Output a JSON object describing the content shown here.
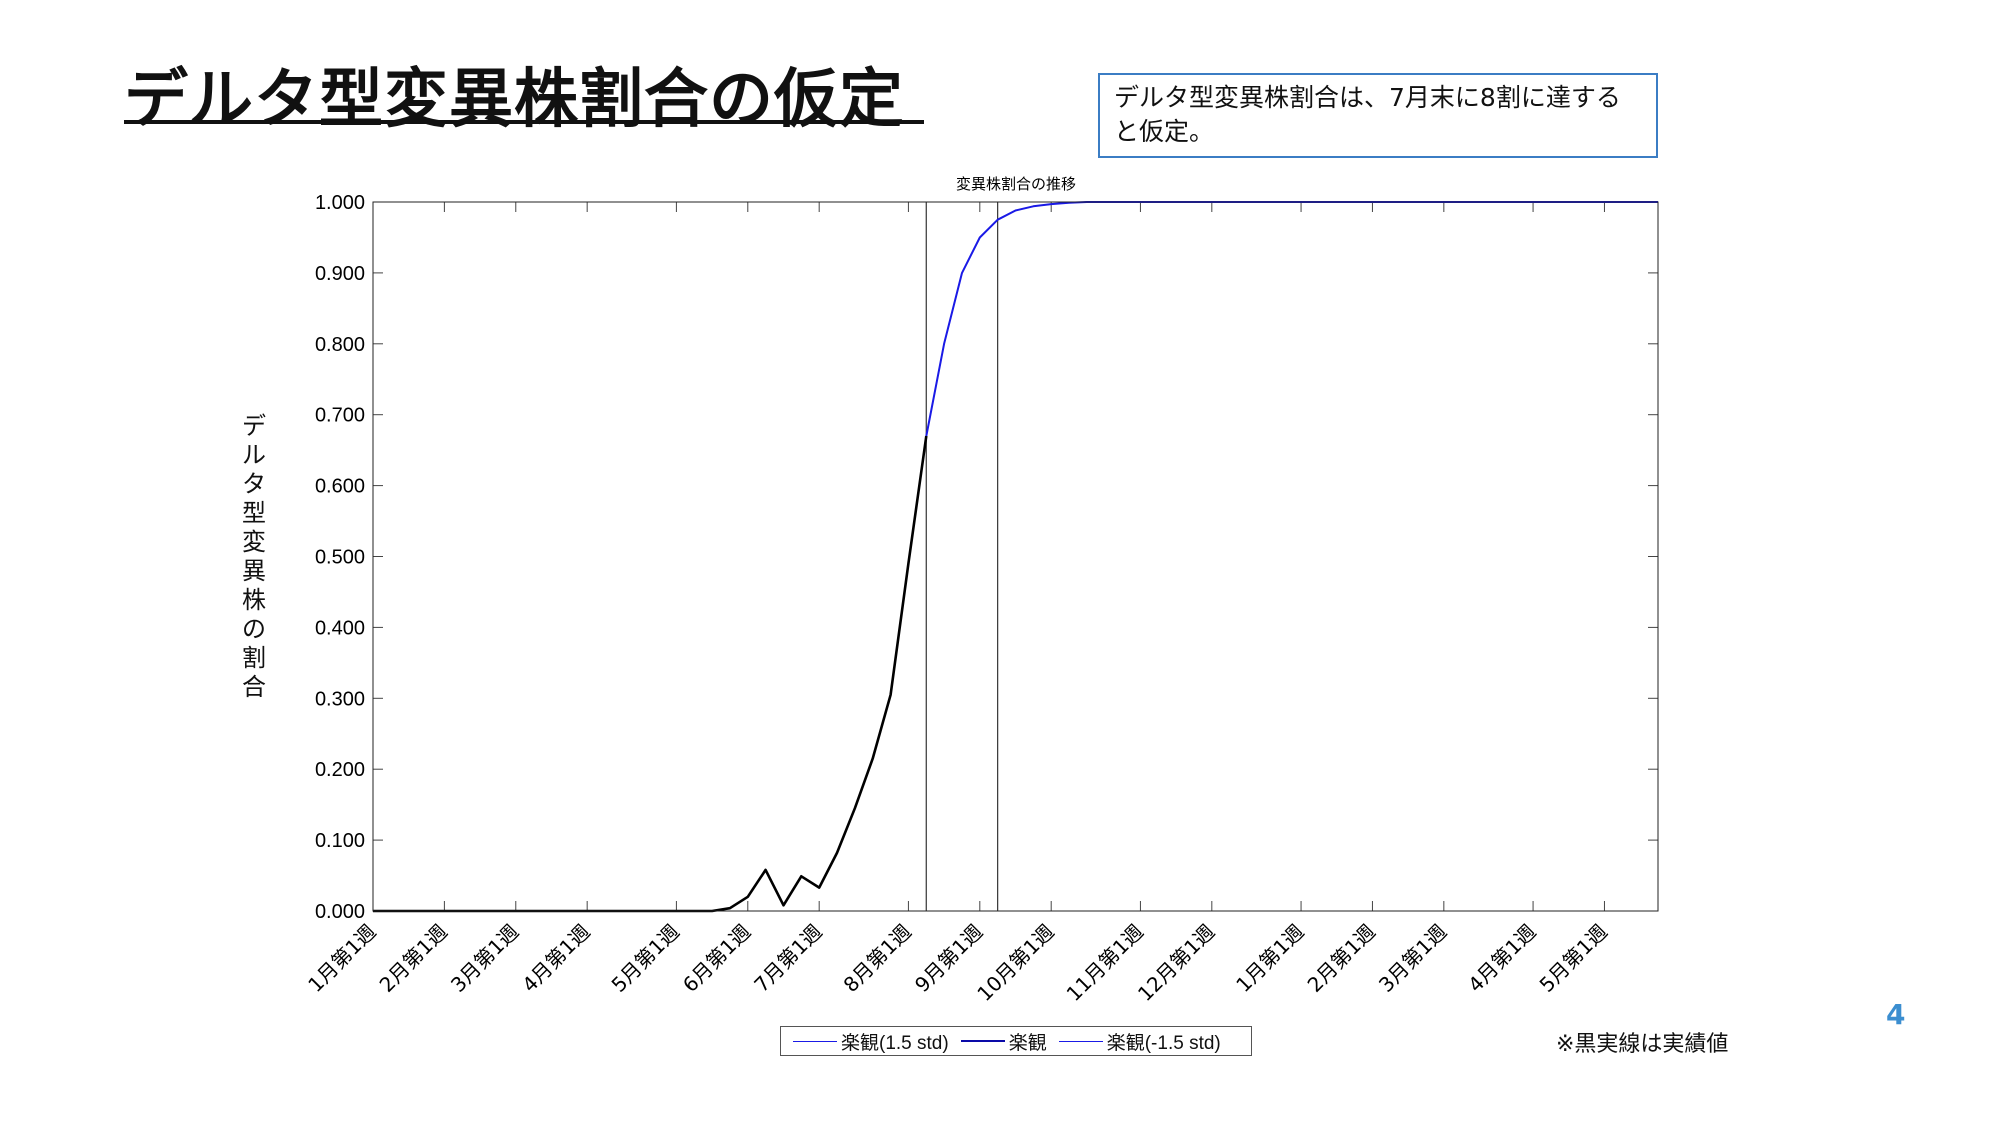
{
  "slide": {
    "title": "デルタ型変異株割合の仮定",
    "note": "デルタ型変異株割合は、7月末に8割に達すると仮定。",
    "footnote": "※黒実線は実績値",
    "page_number": "4"
  },
  "colors": {
    "actual": "#000000",
    "forecast": "#1a1ae6",
    "note_border": "#3b7dc4",
    "page_number": "#3b8ed0"
  },
  "chart_data": {
    "type": "line",
    "title": "変異株割合の推移",
    "ylabel": "デルタ型変異株の割合",
    "xlabel": "",
    "ylim": [
      0,
      1
    ],
    "yticks": [
      "0.000",
      "0.100",
      "0.200",
      "0.300",
      "0.400",
      "0.500",
      "0.600",
      "0.700",
      "0.800",
      "0.900",
      "1.000"
    ],
    "x_range_weeks": [
      0,
      72
    ],
    "x_ticks": [
      {
        "label": "1月第1週",
        "week": 0
      },
      {
        "label": "2月第1週",
        "week": 4
      },
      {
        "label": "3月第1週",
        "week": 8
      },
      {
        "label": "4月第1週",
        "week": 12
      },
      {
        "label": "5月第1週",
        "week": 17
      },
      {
        "label": "6月第1週",
        "week": 21
      },
      {
        "label": "7月第1週",
        "week": 25
      },
      {
        "label": "8月第1週",
        "week": 30
      },
      {
        "label": "9月第1週",
        "week": 34
      },
      {
        "label": "10月第1週",
        "week": 38
      },
      {
        "label": "11月第1週",
        "week": 43
      },
      {
        "label": "12月第1週",
        "week": 47
      },
      {
        "label": "1月第1週",
        "week": 52
      },
      {
        "label": "2月第1週",
        "week": 56
      },
      {
        "label": "3月第1週",
        "week": 60
      },
      {
        "label": "4月第1週",
        "week": 65
      },
      {
        "label": "5月第1週",
        "week": 69
      }
    ],
    "vertical_lines_week": [
      31,
      35
    ],
    "legend_placement": "bottom",
    "grid": false,
    "series": [
      {
        "name": "楽観(1.5 std)",
        "style": "forecast-thin",
        "points": [
          [
            31,
            0.67
          ],
          [
            32,
            0.8
          ],
          [
            33,
            0.9
          ],
          [
            34,
            0.95
          ],
          [
            35,
            0.975
          ],
          [
            36,
            0.988
          ],
          [
            37,
            0.994
          ],
          [
            38,
            0.997
          ],
          [
            39,
            0.999
          ],
          [
            40,
            1.0
          ],
          [
            72,
            1.0
          ]
        ]
      },
      {
        "name": "楽観",
        "style": "forecast",
        "points": [
          [
            31,
            0.67
          ],
          [
            32,
            0.8
          ],
          [
            33,
            0.9
          ],
          [
            34,
            0.95
          ],
          [
            35,
            0.975
          ],
          [
            36,
            0.988
          ],
          [
            37,
            0.994
          ],
          [
            38,
            0.997
          ],
          [
            39,
            0.999
          ],
          [
            40,
            1.0
          ],
          [
            72,
            1.0
          ]
        ]
      },
      {
        "name": "楽観(-1.5 std)",
        "style": "forecast-thin",
        "points": [
          [
            31,
            0.67
          ],
          [
            32,
            0.8
          ],
          [
            33,
            0.9
          ],
          [
            34,
            0.95
          ],
          [
            35,
            0.975
          ],
          [
            36,
            0.988
          ],
          [
            37,
            0.994
          ],
          [
            38,
            0.997
          ],
          [
            39,
            0.999
          ],
          [
            40,
            1.0
          ],
          [
            72,
            1.0
          ]
        ]
      },
      {
        "name": "",
        "style": "actual",
        "points": [
          [
            0,
            0
          ],
          [
            19,
            0
          ],
          [
            20,
            0.004
          ],
          [
            21,
            0.02
          ],
          [
            22,
            0.058
          ],
          [
            23,
            0.008
          ],
          [
            24,
            0.049
          ],
          [
            25,
            0.033
          ],
          [
            26,
            0.082
          ],
          [
            27,
            0.145
          ],
          [
            28,
            0.215
          ],
          [
            29,
            0.305
          ],
          [
            30,
            0.49
          ],
          [
            31,
            0.67
          ]
        ]
      }
    ]
  }
}
